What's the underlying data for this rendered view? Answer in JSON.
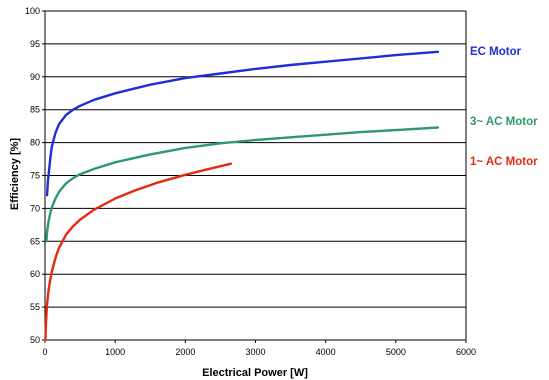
{
  "chart_data": {
    "type": "line",
    "title": "",
    "xlabel": "Electrical Power [W]",
    "ylabel": "Efficiency [%]",
    "xlim": [
      0,
      6000
    ],
    "ylim": [
      50,
      100
    ],
    "xticks": [
      0,
      1000,
      2000,
      3000,
      4000,
      5000,
      6000
    ],
    "yticks": [
      50,
      55,
      60,
      65,
      70,
      75,
      80,
      85,
      90,
      95,
      100
    ],
    "grid": "horizontal",
    "legend": "labels at right end of each series",
    "series": [
      {
        "name": "EC Motor",
        "color": "#1f2fd6",
        "points": [
          [
            30,
            72
          ],
          [
            40,
            74
          ],
          [
            60,
            76
          ],
          [
            80,
            78
          ],
          [
            100,
            79.5
          ],
          [
            150,
            81.5
          ],
          [
            200,
            82.8
          ],
          [
            300,
            84.2
          ],
          [
            400,
            85
          ],
          [
            500,
            85.6
          ],
          [
            700,
            86.5
          ],
          [
            1000,
            87.5
          ],
          [
            1500,
            88.8
          ],
          [
            2000,
            89.8
          ],
          [
            2500,
            90.5
          ],
          [
            3000,
            91.2
          ],
          [
            3500,
            91.8
          ],
          [
            4000,
            92.3
          ],
          [
            4500,
            92.8
          ],
          [
            5000,
            93.3
          ],
          [
            5600,
            93.8
          ]
        ]
      },
      {
        "name": "3~ AC Motor",
        "color": "#2e9a6a",
        "points": [
          [
            20,
            65
          ],
          [
            30,
            66.5
          ],
          [
            50,
            68
          ],
          [
            80,
            69.5
          ],
          [
            100,
            70.2
          ],
          [
            150,
            71.5
          ],
          [
            200,
            72.5
          ],
          [
            300,
            73.8
          ],
          [
            400,
            74.6
          ],
          [
            500,
            75.2
          ],
          [
            700,
            76
          ],
          [
            1000,
            77
          ],
          [
            1500,
            78.2
          ],
          [
            2000,
            79.2
          ],
          [
            2500,
            79.9
          ],
          [
            3000,
            80.4
          ],
          [
            3500,
            80.8
          ],
          [
            4000,
            81.2
          ],
          [
            4500,
            81.6
          ],
          [
            5000,
            81.9
          ],
          [
            5600,
            82.3
          ]
        ]
      },
      {
        "name": "1~ AC Motor",
        "color": "#e62a10",
        "points": [
          [
            5,
            50
          ],
          [
            15,
            53
          ],
          [
            30,
            55.5
          ],
          [
            50,
            57.5
          ],
          [
            80,
            59.5
          ],
          [
            100,
            60.5
          ],
          [
            150,
            62.5
          ],
          [
            200,
            64
          ],
          [
            300,
            66
          ],
          [
            400,
            67.3
          ],
          [
            500,
            68.3
          ],
          [
            700,
            69.8
          ],
          [
            1000,
            71.5
          ],
          [
            1300,
            72.8
          ],
          [
            1600,
            73.9
          ],
          [
            2000,
            75.1
          ],
          [
            2300,
            75.9
          ],
          [
            2650,
            76.8
          ]
        ]
      }
    ]
  }
}
